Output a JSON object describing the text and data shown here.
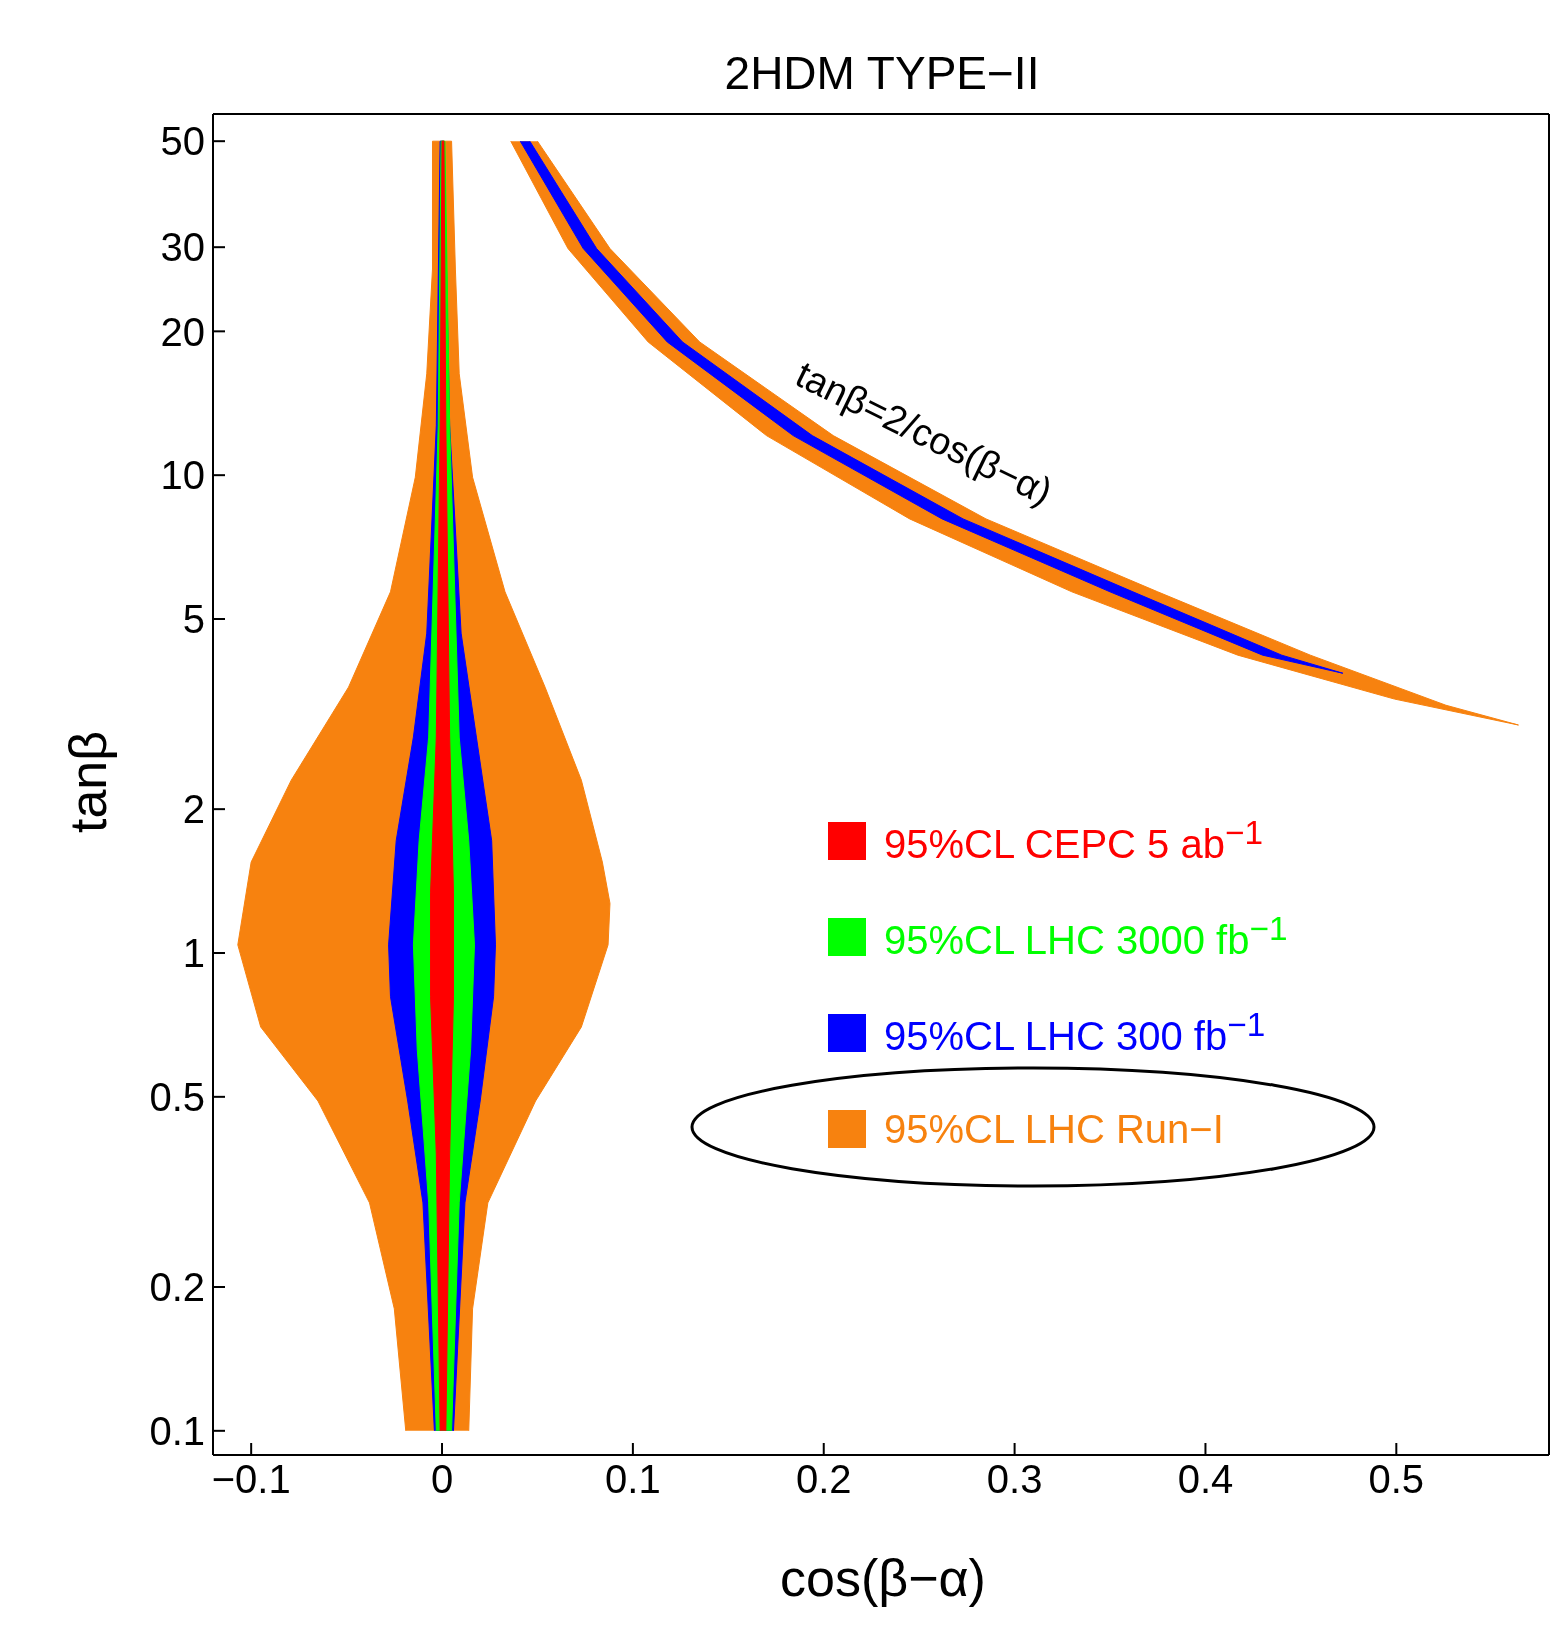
{
  "chart_data": {
    "type": "area",
    "title": "2HDM TYPE−II",
    "xlabel": "cos(β−α)",
    "ylabel": "tanβ",
    "log": "y",
    "grid": false,
    "legend": "right",
    "marker": "none",
    "xlim": [
      -0.12,
      0.58
    ],
    "xticks": [
      {
        "value": -0.1,
        "label": "−0.1"
      },
      0,
      0.1,
      0.2,
      0.3,
      0.4,
      0.5
    ],
    "ylim": [
      0.089,
      57
    ],
    "yticks": [
      0.1,
      0.2,
      0.5,
      1,
      2,
      5,
      10,
      20,
      30,
      50
    ],
    "annotations": [
      "tanβ=2/cos(β−α)"
    ],
    "series": [
      {
        "name": "95%CL LHC Run−I",
        "color": "#f7820f",
        "x": [
          -0.019,
          -0.025,
          -0.038,
          -0.065,
          -0.095,
          -0.107,
          -0.1,
          -0.079,
          -0.049,
          -0.027,
          -0.014,
          -0.008,
          -0.005,
          -0.005,
          0.005,
          0.007,
          0.009,
          0.016,
          0.033,
          0.054,
          0.073,
          0.084,
          0.088,
          0.087,
          0.073,
          0.049,
          0.024,
          0.016,
          0.014
        ],
        "values": [
          0.1,
          0.18,
          0.3,
          0.49,
          0.7,
          1.04,
          1.55,
          2.3,
          3.6,
          5.7,
          9.9,
          16.3,
          27,
          50,
          50,
          27,
          16.3,
          9.9,
          5.7,
          3.6,
          2.3,
          1.55,
          1.27,
          1.04,
          0.7,
          0.49,
          0.3,
          0.18,
          0.1
        ]
      },
      {
        "color": "#f7820f",
        "x": [
          0.036,
          0.066,
          0.108,
          0.17,
          0.245,
          0.33,
          0.417,
          0.499,
          0.564,
          0.526,
          0.455,
          0.375,
          0.285,
          0.205,
          0.135,
          0.088,
          0.05
        ],
        "values": [
          50,
          29.8,
          19,
          12.1,
          8.1,
          5.7,
          4.2,
          3.4,
          3,
          3.3,
          4.2,
          5.7,
          8.1,
          12.1,
          19,
          29.8,
          50
        ]
      },
      {
        "name": "95%CL LHC 300 fb$^{−1}$",
        "color": "#0000ff",
        "x": [
          -0.004,
          -0.01,
          -0.018,
          -0.027,
          -0.028,
          -0.024,
          -0.015,
          -0.008,
          -0.003,
          -0.001,
          0.001,
          0.004,
          0.01,
          0.018,
          0.026,
          0.028,
          0.027,
          0.02,
          0.012,
          0.006
        ],
        "values": [
          0.1,
          0.3,
          0.49,
          0.81,
          1.04,
          1.72,
          2.83,
          4.67,
          12.7,
          50,
          50,
          12.7,
          4.67,
          2.83,
          1.72,
          1.04,
          0.81,
          0.49,
          0.3,
          0.1
        ]
      },
      {
        "color": "#0000ff",
        "x": [
          0.041,
          0.074,
          0.118,
          0.184,
          0.262,
          0.35,
          0.43,
          0.472,
          0.44,
          0.362,
          0.273,
          0.194,
          0.126,
          0.081,
          0.046
        ],
        "values": [
          50,
          29.8,
          19,
          12.1,
          8.1,
          5.7,
          4.2,
          3.85,
          4.2,
          5.7,
          8.1,
          12.1,
          19,
          29.8,
          50
        ]
      },
      {
        "name": "95%CL LHC 3000 fb$^{−1}$",
        "color": "#00ff00",
        "x": [
          -0.003,
          -0.007,
          -0.013,
          -0.015,
          -0.012,
          -0.007,
          -0.002,
          -0.0005,
          0.0015,
          0.004,
          0.009,
          0.014,
          0.017,
          0.015,
          0.009,
          0.005
        ],
        "values": [
          0.1,
          0.3,
          0.63,
          1.04,
          1.72,
          2.83,
          12.7,
          50,
          50,
          12.7,
          2.83,
          1.72,
          1.04,
          0.63,
          0.3,
          0.1
        ]
      },
      {
        "name": "95%CL CEPC 5 ab$^{−1}$",
        "color": "#ff0000",
        "x": [
          -0.001,
          -0.003,
          -0.006,
          -0.006,
          -0.003,
          -0.001,
          0,
          0.001,
          0.002,
          0.004,
          0.006,
          0.006,
          0.004,
          0.002
        ],
        "values": [
          0.1,
          0.38,
          0.81,
          1.34,
          2.83,
          12.7,
          50,
          50,
          12.7,
          2.83,
          1.34,
          0.81,
          0.38,
          0.1
        ]
      }
    ]
  }
}
